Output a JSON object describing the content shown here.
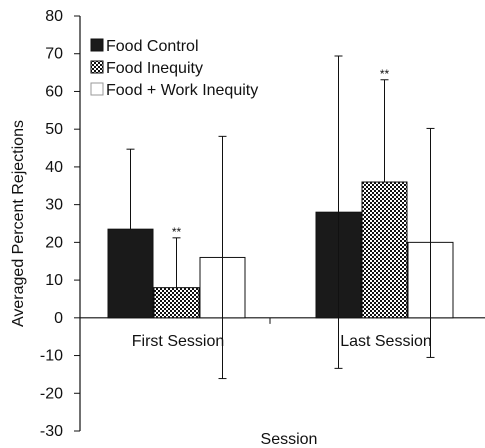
{
  "chart_data": {
    "type": "bar",
    "xlabel": "Session",
    "ylabel": "Averaged Percent Rejections",
    "ylim": [
      -30,
      80
    ],
    "yticks": [
      -30,
      -20,
      -10,
      0,
      10,
      20,
      30,
      40,
      50,
      60,
      70,
      80
    ],
    "categories": [
      "First Session",
      "Last Session"
    ],
    "series": [
      {
        "name": "Food Control",
        "values": [
          23.5,
          28
        ],
        "error_upper": [
          44.7,
          69.4
        ],
        "error_lower": [
          null,
          -13.4
        ],
        "fill": "solid",
        "color": "#1a1a1a"
      },
      {
        "name": "Food Inequity",
        "values": [
          8,
          36
        ],
        "error_upper": [
          21.2,
          63.1
        ],
        "error_lower": [
          null,
          null
        ],
        "fill": "dotted",
        "color": "#1a1a1a"
      },
      {
        "name": "Food + Work Inequity",
        "values": [
          16,
          20
        ],
        "error_upper": [
          48.1,
          50.2
        ],
        "error_lower": [
          -16.1,
          -10.5
        ],
        "fill": "white",
        "color": "#ffffff"
      }
    ],
    "annotations": [
      {
        "text": "**",
        "category": 0,
        "series": 1
      },
      {
        "text": "**",
        "category": 1,
        "series": 1
      }
    ],
    "legend_position": "top-left",
    "grid": false
  }
}
